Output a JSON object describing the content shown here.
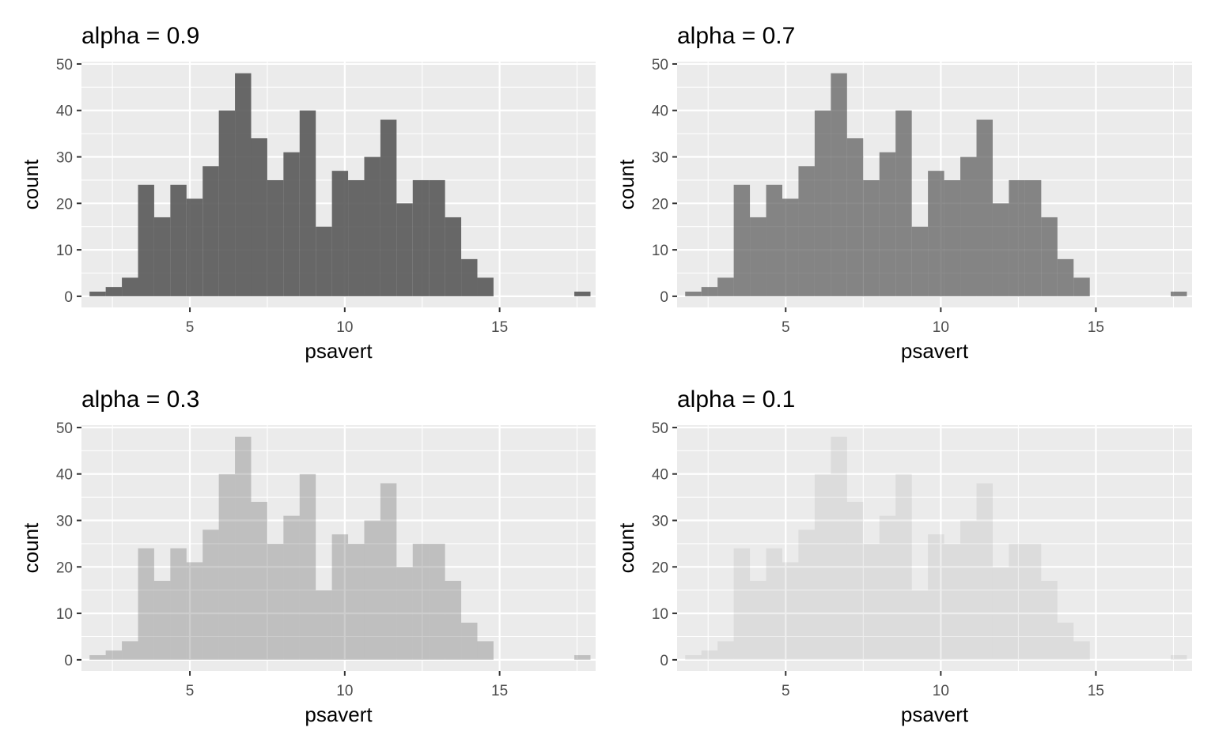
{
  "panel_bg": "#ebebeb",
  "grid_color": "#ffffff",
  "bar_color": "#595959",
  "tick_color": "#333333",
  "chart_data": [
    {
      "type": "bar",
      "title": "alpha = 0.9",
      "xlabel": "psavert",
      "ylabel": "count",
      "alpha": 0.9,
      "xlim": [
        1.5,
        18.1
      ],
      "ylim": [
        -2.4,
        50.5
      ],
      "xticks": [
        5,
        10,
        15
      ],
      "yticks": [
        0,
        10,
        20,
        30,
        40,
        50
      ],
      "bin_width": 0.5217,
      "bin_start": 1.7609,
      "counts": [
        1,
        2,
        4,
        24,
        17,
        24,
        21,
        28,
        40,
        48,
        34,
        25,
        31,
        40,
        15,
        27,
        25,
        30,
        38,
        20,
        25,
        25,
        17,
        8,
        4,
        0,
        0,
        0,
        0,
        0,
        1
      ]
    },
    {
      "type": "bar",
      "title": "alpha = 0.7",
      "xlabel": "psavert",
      "ylabel": "count",
      "alpha": 0.7,
      "xlim": [
        1.5,
        18.1
      ],
      "ylim": [
        -2.4,
        50.5
      ],
      "xticks": [
        5,
        10,
        15
      ],
      "yticks": [
        0,
        10,
        20,
        30,
        40,
        50
      ],
      "bin_width": 0.5217,
      "bin_start": 1.7609,
      "counts": [
        1,
        2,
        4,
        24,
        17,
        24,
        21,
        28,
        40,
        48,
        34,
        25,
        31,
        40,
        15,
        27,
        25,
        30,
        38,
        20,
        25,
        25,
        17,
        8,
        4,
        0,
        0,
        0,
        0,
        0,
        1
      ]
    },
    {
      "type": "bar",
      "title": "alpha = 0.3",
      "xlabel": "psavert",
      "ylabel": "count",
      "alpha": 0.3,
      "xlim": [
        1.5,
        18.1
      ],
      "ylim": [
        -2.4,
        50.5
      ],
      "xticks": [
        5,
        10,
        15
      ],
      "yticks": [
        0,
        10,
        20,
        30,
        40,
        50
      ],
      "bin_width": 0.5217,
      "bin_start": 1.7609,
      "counts": [
        1,
        2,
        4,
        24,
        17,
        24,
        21,
        28,
        40,
        48,
        34,
        25,
        31,
        40,
        15,
        27,
        25,
        30,
        38,
        20,
        25,
        25,
        17,
        8,
        4,
        0,
        0,
        0,
        0,
        0,
        1
      ]
    },
    {
      "type": "bar",
      "title": "alpha = 0.1",
      "xlabel": "psavert",
      "ylabel": "count",
      "alpha": 0.1,
      "xlim": [
        1.5,
        18.1
      ],
      "ylim": [
        -2.4,
        50.5
      ],
      "xticks": [
        5,
        10,
        15
      ],
      "yticks": [
        0,
        10,
        20,
        30,
        40,
        50
      ],
      "bin_width": 0.5217,
      "bin_start": 1.7609,
      "counts": [
        1,
        2,
        4,
        24,
        17,
        24,
        21,
        28,
        40,
        48,
        34,
        25,
        31,
        40,
        15,
        27,
        25,
        30,
        38,
        20,
        25,
        25,
        17,
        8,
        4,
        0,
        0,
        0,
        0,
        0,
        1
      ]
    }
  ]
}
